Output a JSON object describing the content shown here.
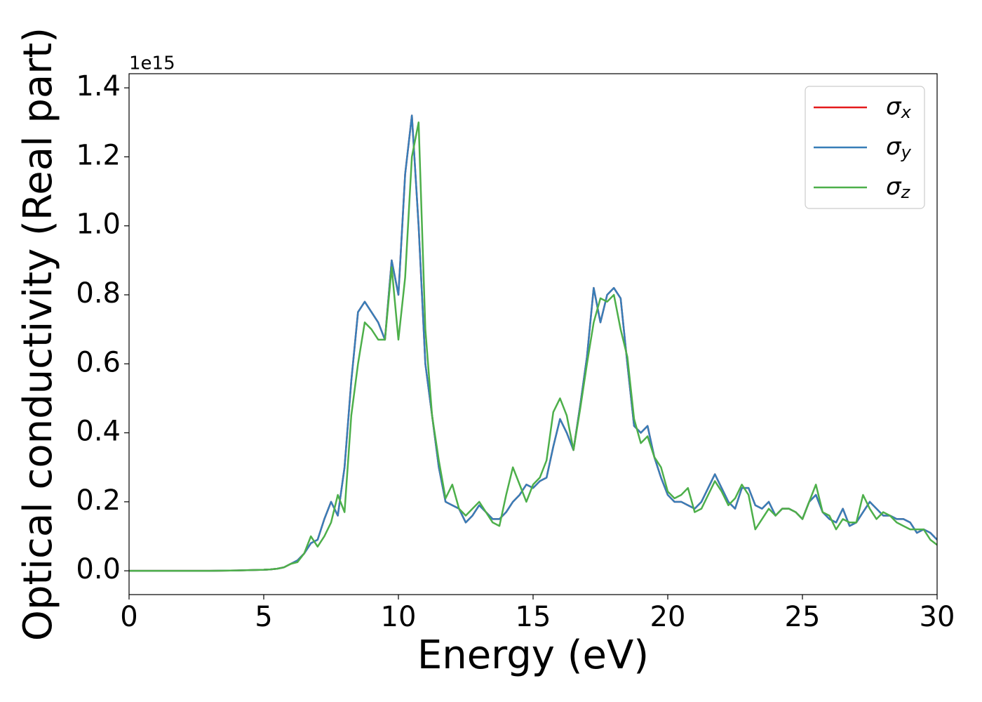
{
  "chart_data": {
    "type": "line",
    "xlabel": "Energy (eV)",
    "ylabel": "Optical conductivity (Real part)",
    "y_offset_text": "1e15",
    "x": [
      0,
      1,
      2,
      3,
      4,
      5,
      5.25,
      5.5,
      5.75,
      6,
      6.25,
      6.5,
      6.75,
      7,
      7.25,
      7.5,
      7.75,
      8,
      8.25,
      8.5,
      8.75,
      9,
      9.25,
      9.5,
      9.75,
      10,
      10.25,
      10.5,
      10.75,
      11,
      11.25,
      11.5,
      11.75,
      12,
      12.25,
      12.5,
      12.75,
      13,
      13.25,
      13.5,
      13.75,
      14,
      14.25,
      14.5,
      14.75,
      15,
      15.25,
      15.5,
      15.75,
      16,
      16.25,
      16.5,
      16.75,
      17,
      17.25,
      17.5,
      17.75,
      18,
      18.25,
      18.5,
      18.75,
      19,
      19.25,
      19.5,
      19.75,
      20,
      20.25,
      20.5,
      20.75,
      21,
      21.25,
      21.5,
      21.75,
      22,
      22.25,
      22.5,
      22.75,
      23,
      23.25,
      23.5,
      23.75,
      24,
      24.25,
      24.5,
      24.75,
      25,
      25.25,
      25.5,
      25.75,
      26,
      26.25,
      26.5,
      26.75,
      27,
      27.25,
      27.5,
      27.75,
      28,
      28.25,
      28.5,
      28.75,
      29,
      29.25,
      29.5,
      29.75,
      30
    ],
    "series": [
      {
        "name": "σx",
        "color": "#e41a1c",
        "values": [
          0,
          0,
          0,
          0,
          0.001,
          0.003,
          0.004,
          0.006,
          0.01,
          0.02,
          0.03,
          0.05,
          0.08,
          0.09,
          0.15,
          0.2,
          0.16,
          0.3,
          0.55,
          0.75,
          0.78,
          0.75,
          0.72,
          0.67,
          0.9,
          0.8,
          1.15,
          1.32,
          1.0,
          0.6,
          0.45,
          0.3,
          0.2,
          0.19,
          0.18,
          0.14,
          0.16,
          0.19,
          0.17,
          0.15,
          0.15,
          0.17,
          0.2,
          0.22,
          0.25,
          0.24,
          0.26,
          0.27,
          0.36,
          0.44,
          0.4,
          0.35,
          0.48,
          0.62,
          0.82,
          0.72,
          0.8,
          0.82,
          0.79,
          0.6,
          0.42,
          0.4,
          0.42,
          0.33,
          0.27,
          0.22,
          0.2,
          0.2,
          0.19,
          0.18,
          0.2,
          0.24,
          0.28,
          0.24,
          0.2,
          0.18,
          0.24,
          0.24,
          0.19,
          0.18,
          0.2,
          0.16,
          0.18,
          0.18,
          0.17,
          0.15,
          0.2,
          0.22,
          0.17,
          0.15,
          0.14,
          0.18,
          0.13,
          0.14,
          0.17,
          0.2,
          0.18,
          0.16,
          0.16,
          0.15,
          0.15,
          0.14,
          0.11,
          0.12,
          0.11,
          0.09
        ]
      },
      {
        "name": "σy",
        "color": "#377eb8",
        "values": [
          0,
          0,
          0,
          0,
          0.001,
          0.003,
          0.004,
          0.006,
          0.01,
          0.02,
          0.03,
          0.05,
          0.08,
          0.09,
          0.15,
          0.2,
          0.16,
          0.3,
          0.55,
          0.75,
          0.78,
          0.75,
          0.72,
          0.67,
          0.9,
          0.8,
          1.15,
          1.32,
          1.0,
          0.6,
          0.45,
          0.3,
          0.2,
          0.19,
          0.18,
          0.14,
          0.16,
          0.19,
          0.17,
          0.15,
          0.15,
          0.17,
          0.2,
          0.22,
          0.25,
          0.24,
          0.26,
          0.27,
          0.36,
          0.44,
          0.4,
          0.35,
          0.48,
          0.62,
          0.82,
          0.72,
          0.8,
          0.82,
          0.79,
          0.6,
          0.42,
          0.4,
          0.42,
          0.33,
          0.27,
          0.22,
          0.2,
          0.2,
          0.19,
          0.18,
          0.2,
          0.24,
          0.28,
          0.24,
          0.2,
          0.18,
          0.24,
          0.24,
          0.19,
          0.18,
          0.2,
          0.16,
          0.18,
          0.18,
          0.17,
          0.15,
          0.2,
          0.22,
          0.17,
          0.15,
          0.14,
          0.18,
          0.13,
          0.14,
          0.17,
          0.2,
          0.18,
          0.16,
          0.16,
          0.15,
          0.15,
          0.14,
          0.11,
          0.12,
          0.11,
          0.09
        ]
      },
      {
        "name": "σz",
        "color": "#4daf4a",
        "values": [
          0,
          0,
          0,
          0,
          0.001,
          0.003,
          0.004,
          0.006,
          0.01,
          0.02,
          0.025,
          0.05,
          0.1,
          0.07,
          0.1,
          0.14,
          0.22,
          0.17,
          0.45,
          0.6,
          0.72,
          0.7,
          0.67,
          0.67,
          0.88,
          0.67,
          0.85,
          1.2,
          1.3,
          0.7,
          0.45,
          0.32,
          0.21,
          0.25,
          0.18,
          0.16,
          0.18,
          0.2,
          0.17,
          0.14,
          0.13,
          0.22,
          0.3,
          0.25,
          0.2,
          0.25,
          0.27,
          0.32,
          0.46,
          0.5,
          0.45,
          0.35,
          0.47,
          0.6,
          0.72,
          0.79,
          0.78,
          0.8,
          0.7,
          0.62,
          0.44,
          0.37,
          0.39,
          0.33,
          0.3,
          0.23,
          0.21,
          0.22,
          0.24,
          0.17,
          0.18,
          0.22,
          0.26,
          0.23,
          0.19,
          0.21,
          0.25,
          0.22,
          0.12,
          0.15,
          0.18,
          0.16,
          0.18,
          0.18,
          0.17,
          0.15,
          0.2,
          0.25,
          0.17,
          0.16,
          0.12,
          0.15,
          0.14,
          0.14,
          0.22,
          0.18,
          0.15,
          0.17,
          0.16,
          0.14,
          0.13,
          0.12,
          0.12,
          0.12,
          0.09,
          0.075
        ]
      }
    ],
    "xlim": [
      0,
      30
    ],
    "xticks": [
      0,
      5,
      10,
      15,
      20,
      25,
      30
    ],
    "ylim": [
      -0.069,
      1.441
    ],
    "yticks": [
      {
        "value": 0,
        "label": "0.0"
      },
      0.2,
      0.4,
      0.6,
      0.8,
      {
        "value": 1,
        "label": "1.0"
      },
      1.2,
      1.4
    ],
    "legend": "upper right",
    "grid": false
  }
}
